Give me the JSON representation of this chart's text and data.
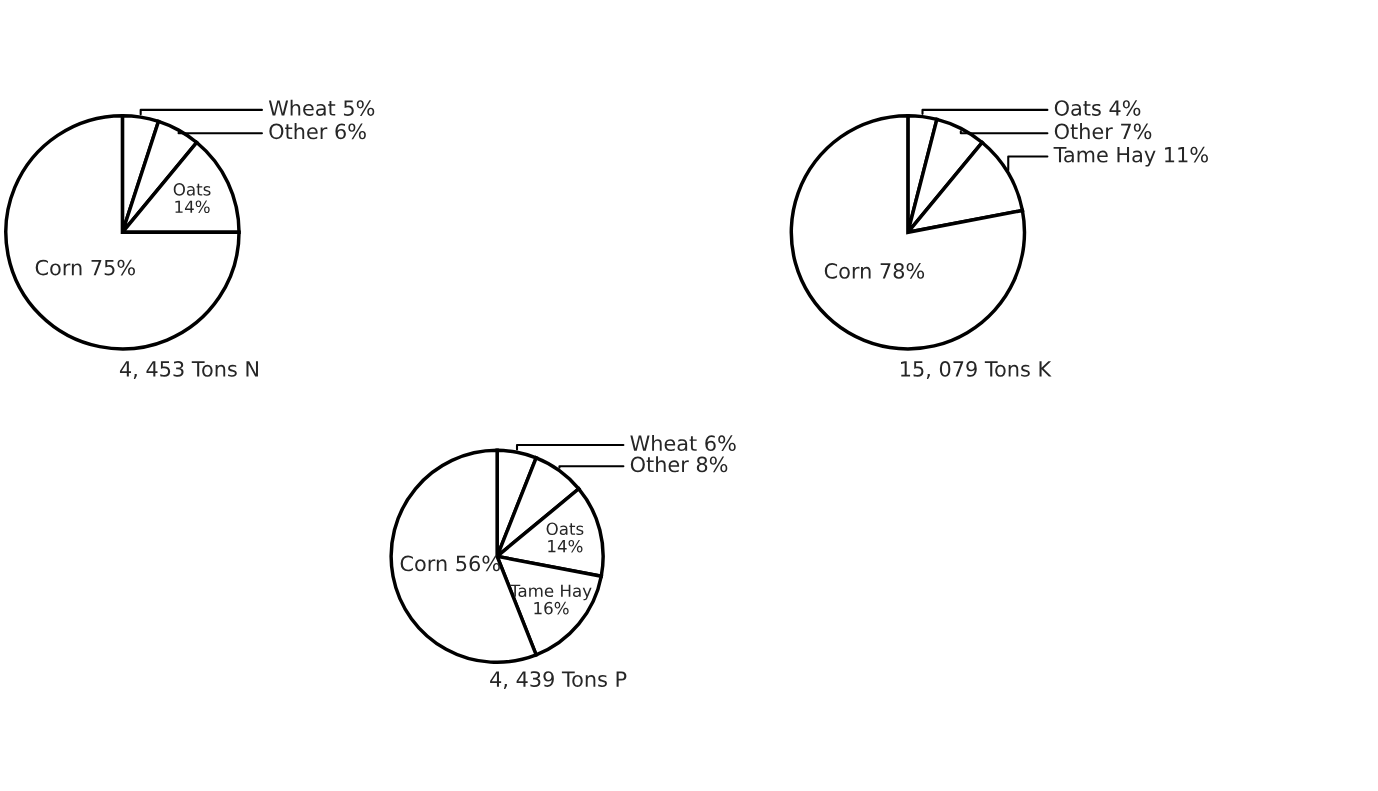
{
  "chart_data": [
    {
      "type": "pie",
      "title": "4, 453 Tons N",
      "categories": [
        "Wheat",
        "Other",
        "Oats",
        "Corn"
      ],
      "values": [
        5,
        6,
        14,
        75
      ],
      "value_labels": [
        "5%",
        "6%",
        "14%",
        "75%"
      ],
      "colors": [
        "#ffffff",
        "#ffffff",
        "#ffffff",
        "#ffffff"
      ]
    },
    {
      "type": "pie",
      "title": "4, 439 Tons P",
      "categories": [
        "Wheat",
        "Other",
        "Oats",
        "Tame Hay",
        "Corn"
      ],
      "values": [
        6,
        8,
        14,
        16,
        56
      ],
      "value_labels": [
        "6%",
        "8%",
        "14%",
        "16%",
        "56%"
      ],
      "colors": [
        "#ffffff",
        "#ffffff",
        "#ffffff",
        "#ffffff",
        "#ffffff"
      ]
    },
    {
      "type": "pie",
      "title": "15, 079 Tons K",
      "categories": [
        "Oats",
        "Other",
        "Tame Hay",
        "Corn"
      ],
      "values": [
        4,
        7,
        11,
        78
      ],
      "value_labels": [
        "4%",
        "7%",
        "11%",
        "78%"
      ],
      "colors": [
        "#ffffff",
        "#ffffff",
        "#ffffff",
        "#ffffff"
      ]
    }
  ]
}
